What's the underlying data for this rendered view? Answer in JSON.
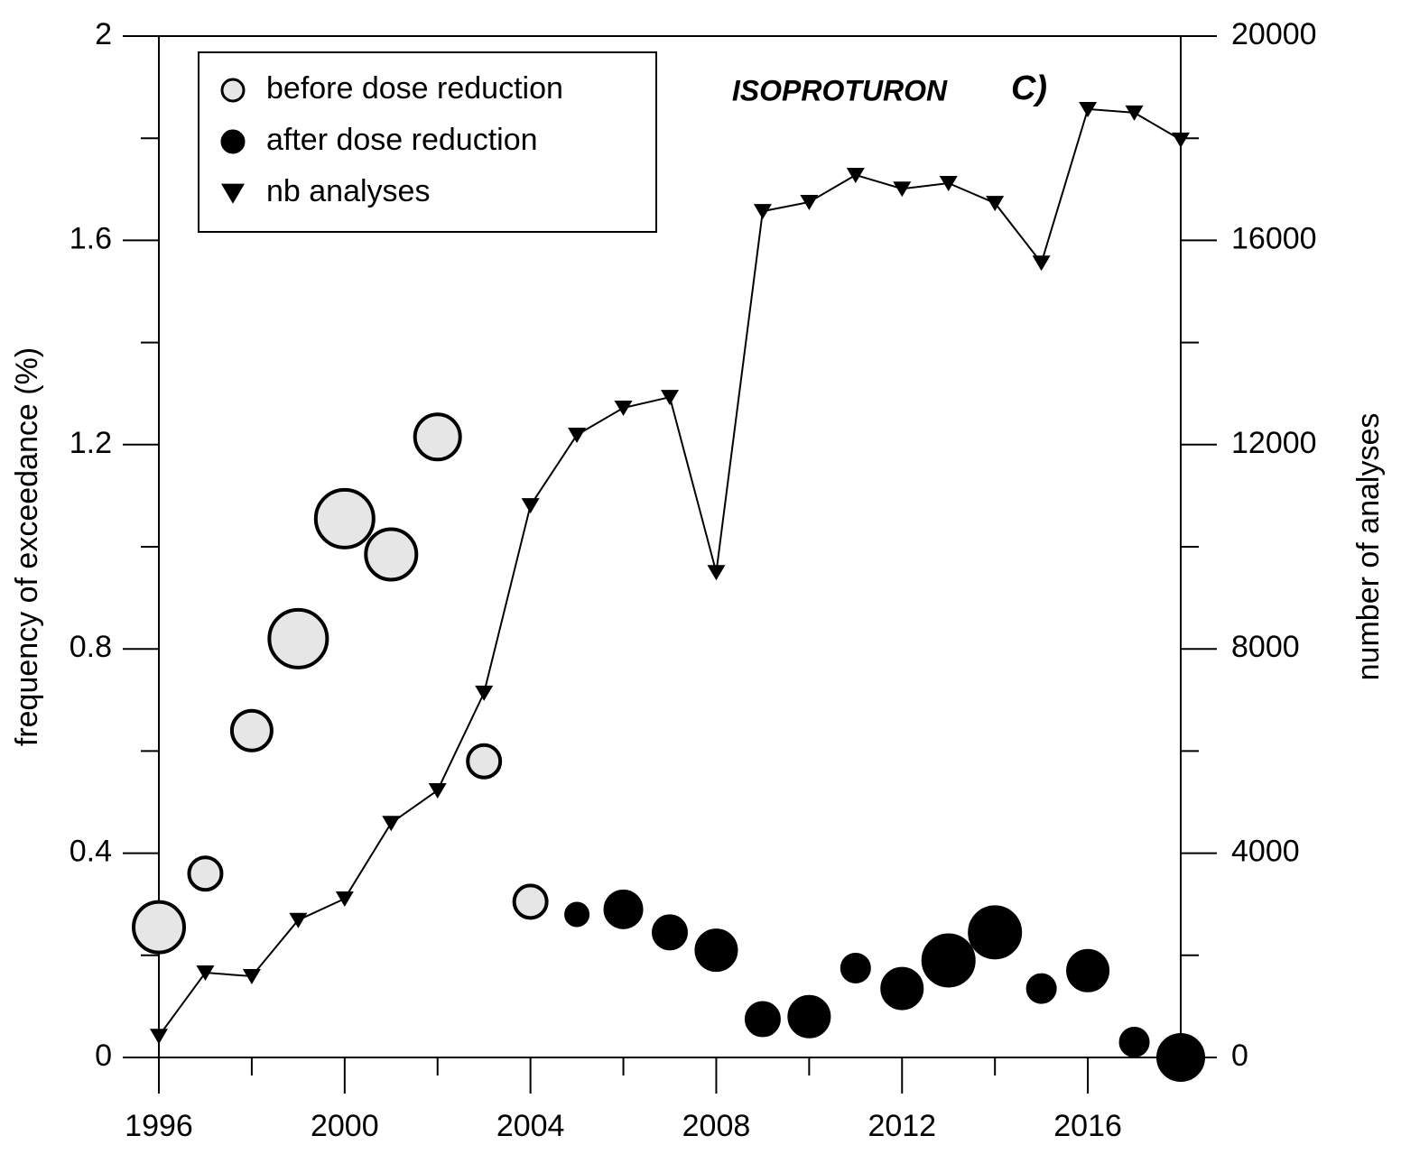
{
  "chart_data": {
    "type": "scatter",
    "title": "ISOPROTURON",
    "panel_label": "C)",
    "ylabel": "frequency of exceedance (%)",
    "y2label": "number of analyses",
    "xlim": [
      1996,
      2018
    ],
    "xticks": [
      1996,
      2000,
      2004,
      2008,
      2012,
      2016
    ],
    "minor_xticks": [
      1998,
      2002,
      2006,
      2010,
      2014,
      2018
    ],
    "ylim": [
      0,
      2
    ],
    "yticks": [
      0,
      0.4,
      0.8,
      1.2,
      1.6,
      2
    ],
    "minor_yticks": [
      0.2,
      0.6,
      1.0,
      1.4,
      1.8
    ],
    "y2lim": [
      0,
      20000
    ],
    "y2ticks": [
      0,
      4000,
      8000,
      12000,
      16000,
      20000
    ],
    "minor_y2ticks": [
      2000,
      6000,
      10000,
      14000,
      18000
    ],
    "legend": "top-left",
    "series": [
      {
        "name": "before dose reduction",
        "color": "#e6e6e6",
        "marker": "circle",
        "x": [
          1996,
          1997,
          1998,
          1999,
          2000,
          2001,
          2002,
          2003,
          2004
        ],
        "values": [
          0.255,
          0.36,
          0.64,
          0.82,
          1.055,
          0.985,
          1.215,
          0.58,
          0.305
        ],
        "sizes": [
          28,
          18,
          22,
          32,
          32,
          28,
          25,
          18,
          18
        ]
      },
      {
        "name": "after dose reduction",
        "color": "#000000",
        "marker": "circle",
        "x": [
          2005,
          2006,
          2007,
          2008,
          2009,
          2010,
          2011,
          2012,
          2013,
          2014,
          2015,
          2016,
          2017,
          2018
        ],
        "values": [
          0.28,
          0.29,
          0.245,
          0.21,
          0.075,
          0.08,
          0.175,
          0.135,
          0.19,
          0.245,
          0.135,
          0.17,
          0.03,
          0
        ],
        "sizes": [
          12,
          20,
          18,
          22,
          18,
          22,
          15,
          22,
          28,
          28,
          15,
          22,
          15,
          25
        ]
      },
      {
        "name": "nb analyses",
        "color": "#000000",
        "marker": "triangle-down",
        "axis": "y2",
        "line": true,
        "x": [
          1996,
          1997,
          1998,
          1999,
          2000,
          2001,
          2002,
          2003,
          2004,
          2005,
          2006,
          2007,
          2008,
          2009,
          2010,
          2011,
          2012,
          2013,
          2014,
          2015,
          2016,
          2017,
          2018
        ],
        "values": [
          420,
          1660,
          1590,
          2690,
          3110,
          4590,
          5230,
          7140,
          10810,
          12190,
          12720,
          12930,
          9500,
          16570,
          16750,
          17280,
          17010,
          17120,
          16730,
          15560,
          18570,
          18500,
          17970
        ]
      }
    ]
  }
}
